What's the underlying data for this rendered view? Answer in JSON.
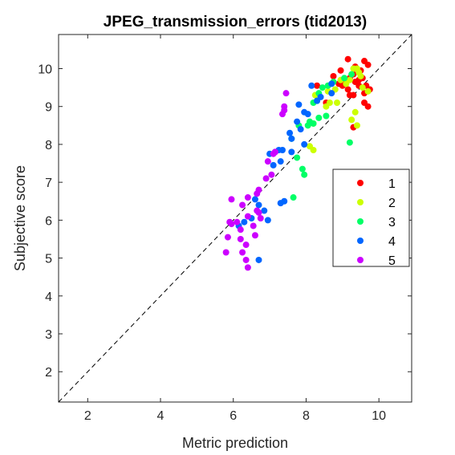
{
  "chart_data": {
    "type": "scatter",
    "title": "JPEG_transmission_errors (tid2013)",
    "xlabel": "Metric prediction",
    "ylabel": "Subjective score",
    "xlim": [
      1.2,
      10.9
    ],
    "ylim": [
      1.2,
      10.9
    ],
    "x_ticks": [
      2,
      4,
      6,
      8,
      10
    ],
    "y_ticks": [
      2,
      3,
      4,
      5,
      6,
      7,
      8,
      9,
      10
    ],
    "grid": false,
    "legend_position": "right",
    "reference_line": "y = x (dashed)",
    "series": [
      {
        "name": "1",
        "color": "#ff0000",
        "points": [
          [
            9.15,
            10.25
          ],
          [
            9.35,
            10.05
          ],
          [
            9.6,
            10.2
          ],
          [
            9.7,
            10.1
          ],
          [
            8.95,
            9.95
          ],
          [
            9.5,
            9.95
          ],
          [
            9.3,
            9.85
          ],
          [
            9.2,
            9.75
          ],
          [
            9.05,
            9.7
          ],
          [
            8.9,
            9.6
          ],
          [
            9.35,
            9.65
          ],
          [
            9.45,
            9.7
          ],
          [
            9.65,
            9.55
          ],
          [
            9.75,
            9.45
          ],
          [
            9.6,
            9.35
          ],
          [
            9.3,
            9.3
          ],
          [
            9.2,
            9.3
          ],
          [
            9.6,
            9.1
          ],
          [
            9.7,
            9.0
          ],
          [
            8.75,
            9.8
          ],
          [
            8.3,
            9.55
          ],
          [
            8.55,
            9.1
          ],
          [
            9.3,
            8.45
          ],
          [
            9.15,
            9.45
          ],
          [
            9.45,
            9.55
          ],
          [
            9.55,
            9.75
          ],
          [
            9.0,
            9.55
          ]
        ]
      },
      {
        "name": "2",
        "color": "#ccff00",
        "points": [
          [
            9.3,
            10.0
          ],
          [
            9.45,
            9.9
          ],
          [
            9.2,
            9.7
          ],
          [
            9.55,
            9.5
          ],
          [
            9.7,
            9.4
          ],
          [
            9.1,
            9.6
          ],
          [
            8.95,
            9.7
          ],
          [
            8.8,
            9.45
          ],
          [
            8.6,
            9.4
          ],
          [
            8.65,
            9.1
          ],
          [
            8.85,
            9.1
          ],
          [
            9.35,
            8.85
          ],
          [
            9.4,
            8.5
          ],
          [
            9.25,
            8.65
          ],
          [
            8.2,
            7.85
          ],
          [
            8.1,
            7.95
          ],
          [
            8.2,
            8.55
          ],
          [
            8.25,
            9.3
          ],
          [
            8.55,
            9.0
          ],
          [
            9.5,
            9.8
          ],
          [
            9.4,
            10.0
          ]
        ]
      },
      {
        "name": "3",
        "color": "#00ff66",
        "points": [
          [
            9.25,
            9.85
          ],
          [
            9.05,
            9.75
          ],
          [
            8.75,
            9.65
          ],
          [
            8.6,
            9.55
          ],
          [
            8.35,
            9.35
          ],
          [
            8.2,
            9.1
          ],
          [
            8.55,
            8.75
          ],
          [
            8.35,
            8.7
          ],
          [
            8.05,
            8.5
          ],
          [
            8.2,
            8.55
          ],
          [
            7.8,
            8.5
          ],
          [
            7.6,
            8.15
          ],
          [
            7.9,
            7.35
          ],
          [
            7.75,
            7.65
          ],
          [
            7.95,
            7.2
          ],
          [
            7.65,
            6.6
          ],
          [
            9.2,
            8.05
          ],
          [
            8.45,
            9.5
          ],
          [
            8.3,
            9.15
          ],
          [
            8.1,
            8.6
          ]
        ]
      },
      {
        "name": "4",
        "color": "#0066ff",
        "points": [
          [
            8.7,
            9.6
          ],
          [
            8.7,
            9.35
          ],
          [
            8.4,
            9.25
          ],
          [
            8.15,
            9.55
          ],
          [
            7.8,
            9.05
          ],
          [
            7.95,
            8.85
          ],
          [
            7.75,
            8.6
          ],
          [
            8.05,
            8.8
          ],
          [
            7.85,
            8.4
          ],
          [
            7.55,
            8.3
          ],
          [
            7.6,
            8.15
          ],
          [
            7.95,
            8.0
          ],
          [
            7.6,
            7.8
          ],
          [
            7.25,
            7.85
          ],
          [
            7.0,
            7.75
          ],
          [
            7.15,
            7.8
          ],
          [
            7.35,
            7.85
          ],
          [
            7.3,
            7.55
          ],
          [
            7.1,
            7.45
          ],
          [
            6.6,
            6.55
          ],
          [
            6.7,
            6.4
          ],
          [
            6.85,
            6.25
          ],
          [
            7.3,
            6.45
          ],
          [
            7.4,
            6.5
          ],
          [
            6.95,
            6.0
          ],
          [
            6.5,
            6.05
          ],
          [
            6.3,
            5.95
          ],
          [
            6.15,
            5.85
          ],
          [
            6.7,
            4.95
          ],
          [
            8.3,
            9.15
          ]
        ]
      },
      {
        "name": "5",
        "color": "#cc00ff",
        "points": [
          [
            7.45,
            9.35
          ],
          [
            7.4,
            9.0
          ],
          [
            7.35,
            8.8
          ],
          [
            7.4,
            8.9
          ],
          [
            7.1,
            7.75
          ],
          [
            6.95,
            7.55
          ],
          [
            7.05,
            7.2
          ],
          [
            6.9,
            7.1
          ],
          [
            6.7,
            6.8
          ],
          [
            6.65,
            6.7
          ],
          [
            6.4,
            6.6
          ],
          [
            6.25,
            6.4
          ],
          [
            6.7,
            6.2
          ],
          [
            6.75,
            6.05
          ],
          [
            6.65,
            6.25
          ],
          [
            6.4,
            6.1
          ],
          [
            6.1,
            5.95
          ],
          [
            5.95,
            6.55
          ],
          [
            5.95,
            5.9
          ],
          [
            5.9,
            5.95
          ],
          [
            6.2,
            5.75
          ],
          [
            6.2,
            5.5
          ],
          [
            5.85,
            5.55
          ],
          [
            6.6,
            5.6
          ],
          [
            6.35,
            5.35
          ],
          [
            6.25,
            5.15
          ],
          [
            6.35,
            4.95
          ],
          [
            6.4,
            4.75
          ],
          [
            5.8,
            5.15
          ],
          [
            6.55,
            5.85
          ],
          [
            7.15,
            7.8
          ]
        ]
      }
    ]
  }
}
